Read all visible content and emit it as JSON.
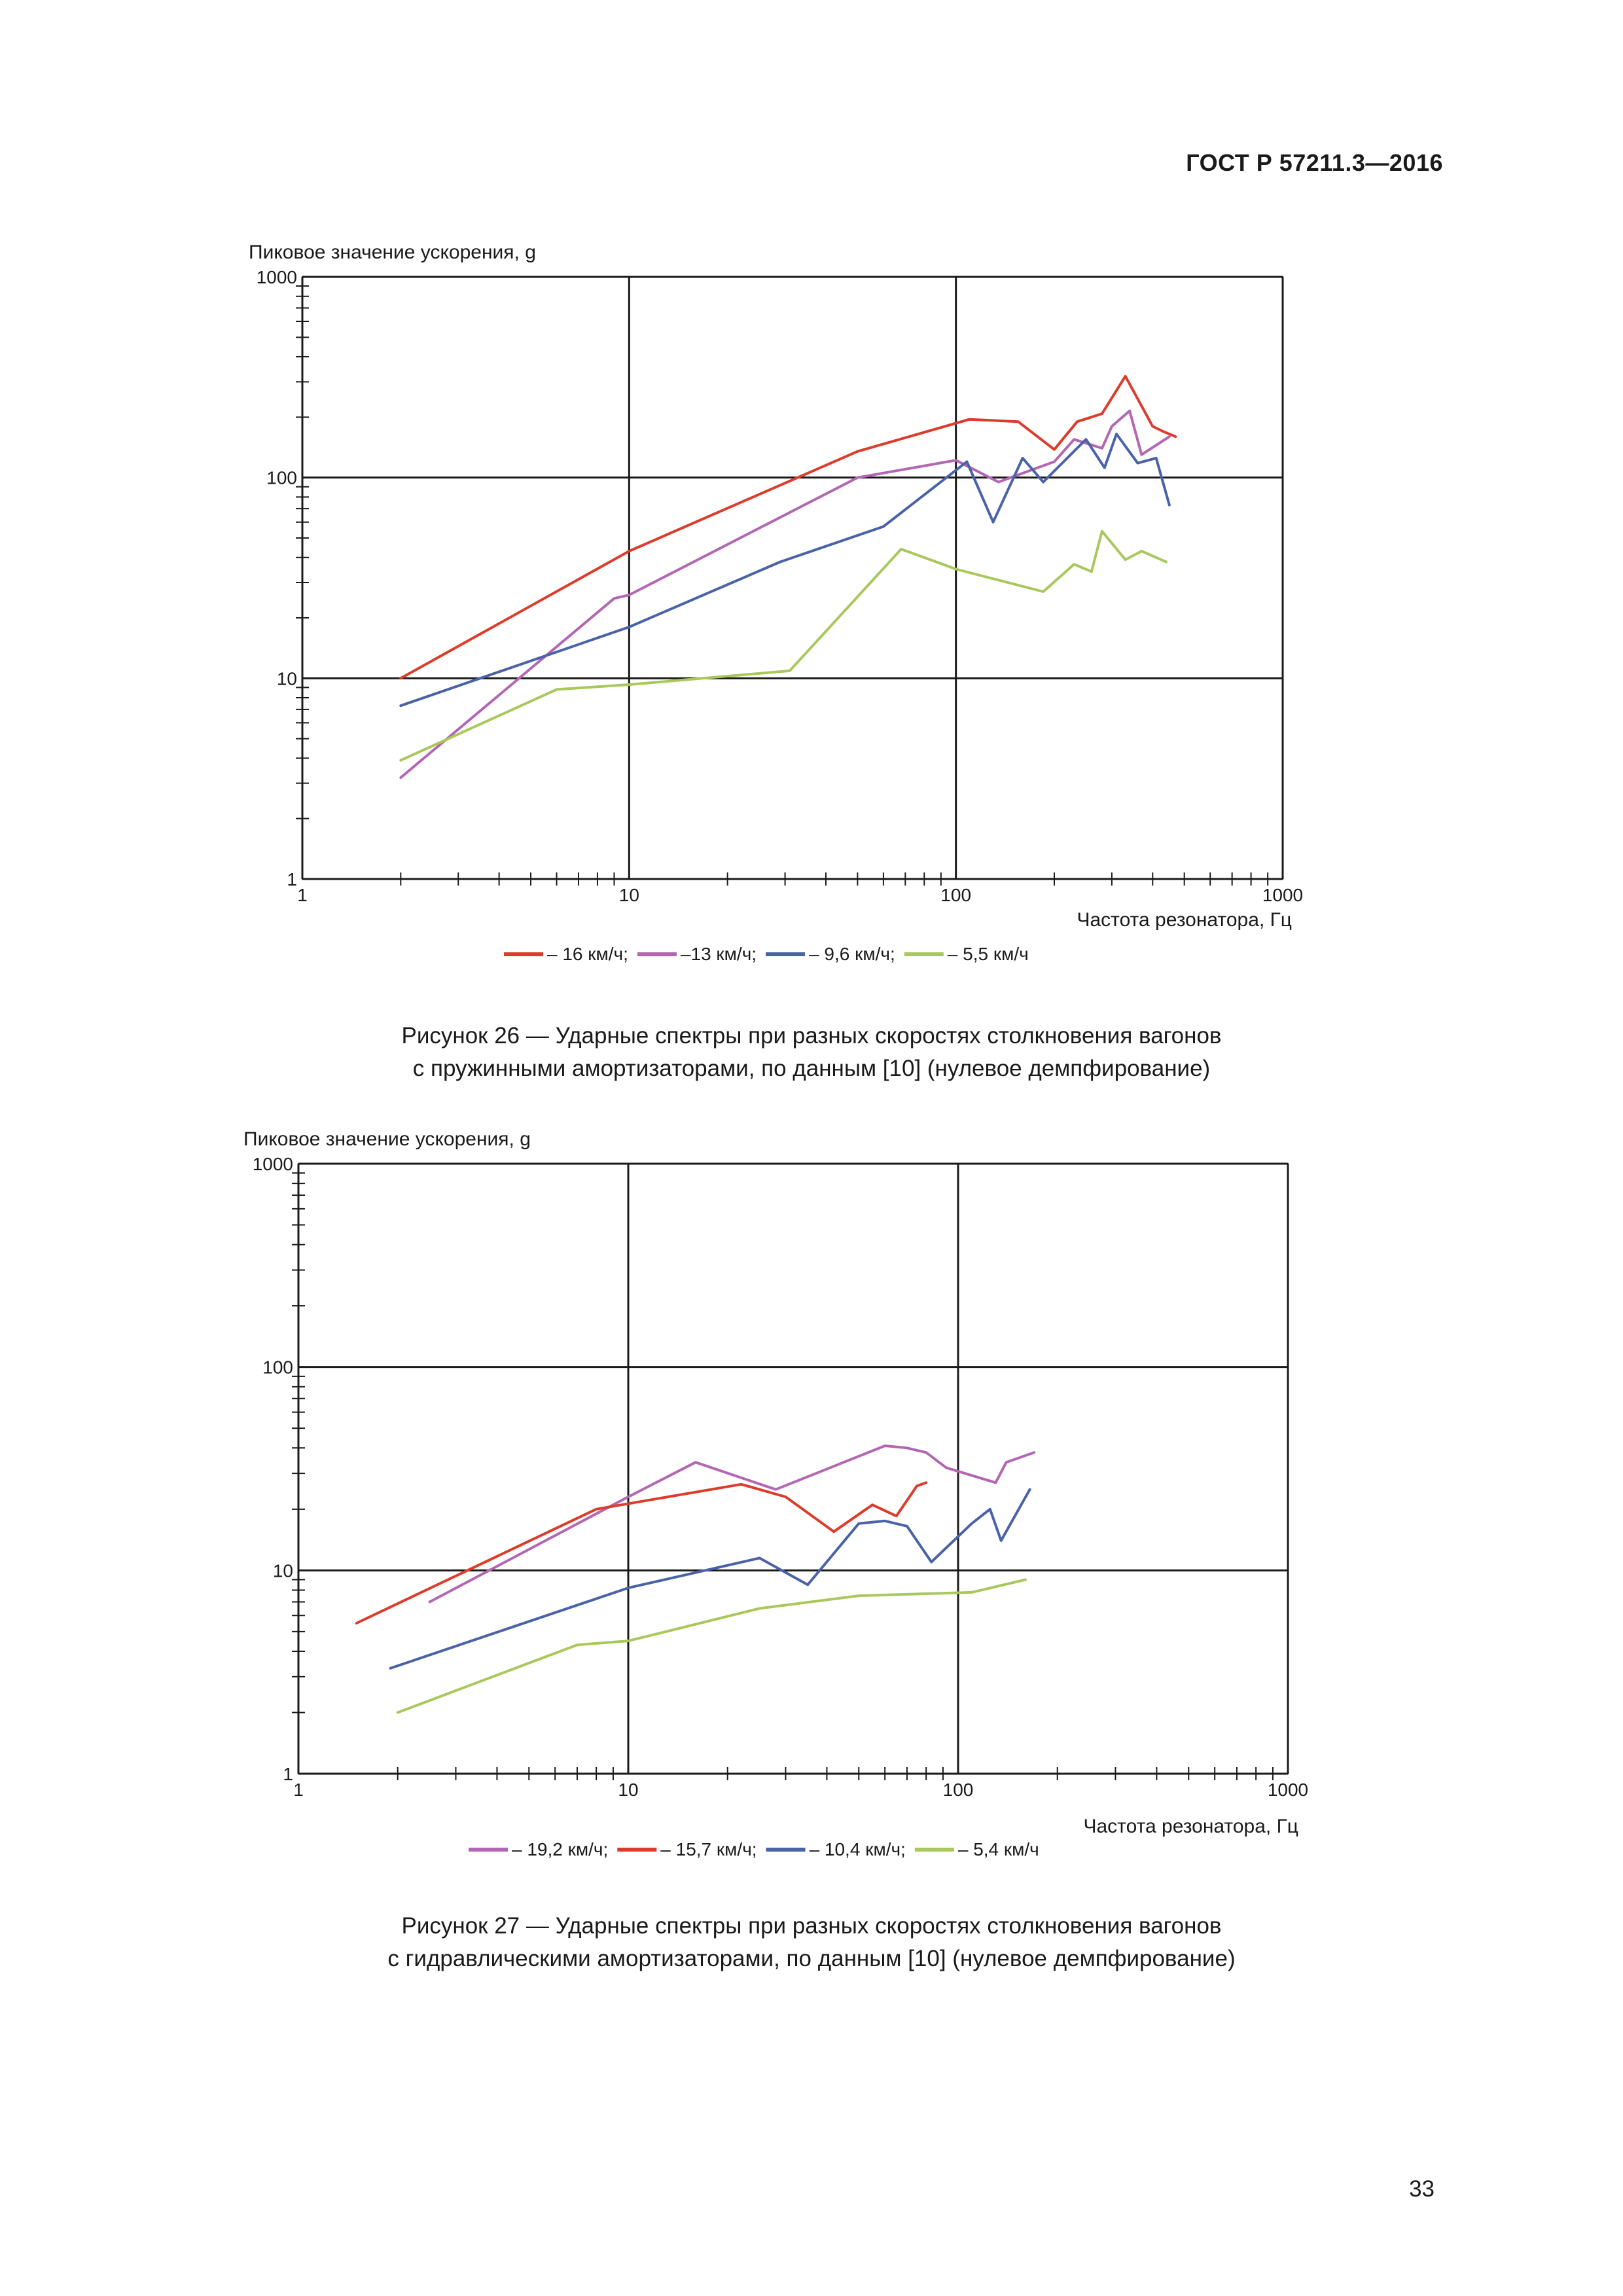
{
  "header": {
    "doc_code": "ГОСТ Р 57211.3—2016"
  },
  "page_number": "33",
  "colors": {
    "red": "#dd3b2b",
    "purple": "#b366b3",
    "blue": "#4a63a8",
    "green": "#a9c85b",
    "grid": "#1a1a1a"
  },
  "charts": [
    {
      "caption": [
        "Рисунок 26 — Ударные спектры при разных скоростях столкновения вагонов",
        "с пружинными амортизаторами, по данным [10] (нулевое демпфирование)"
      ]
    },
    {
      "caption": [
        "Рисунок 27 — Ударные спектры при разных скоростях столкновения вагонов",
        "с гидравлическими амортизаторами, по данным [10] (нулевое демпфирование)"
      ]
    }
  ],
  "chart_data": [
    {
      "type": "line",
      "title": "",
      "ylabel": "Пиковое значение ускорения, g",
      "xlabel": "Частота резонатора, Гц",
      "xscale": "log",
      "yscale": "log",
      "xlim": [
        1,
        1000
      ],
      "ylim": [
        1,
        1000
      ],
      "xticks": [
        "1",
        "10",
        "100",
        "1000"
      ],
      "yticks": [
        "1",
        "10",
        "100",
        "1000"
      ],
      "legend_position": "bottom",
      "series": [
        {
          "name": "– 16 км/ч;",
          "color": "#dd3b2b",
          "x": [
            2,
            10,
            50,
            110,
            155,
            200,
            235,
            280,
            330,
            400,
            430,
            470
          ],
          "y": [
            10,
            43,
            135,
            195,
            190,
            138,
            190,
            208,
            320,
            180,
            170,
            160
          ]
        },
        {
          "name": "–13 км/ч;",
          "color": "#b366b3",
          "x": [
            2,
            9,
            10,
            50,
            100,
            135,
            200,
            230,
            280,
            300,
            340,
            370,
            450
          ],
          "y": [
            3.2,
            25,
            26,
            100,
            122,
            95,
            120,
            155,
            140,
            180,
            215,
            130,
            160
          ]
        },
        {
          "name": "– 9,6 км/ч;",
          "color": "#4a63a8",
          "x": [
            2,
            10,
            29,
            60,
            108,
            130,
            160,
            185,
            250,
            285,
            310,
            360,
            410,
            450
          ],
          "y": [
            7.3,
            18,
            38,
            57,
            120,
            60,
            125,
            95,
            155,
            112,
            165,
            118,
            125,
            73
          ]
        },
        {
          "name": "– 5,5 км/ч",
          "color": "#a9c85b",
          "x": [
            2,
            6,
            10,
            31,
            68,
            100,
            185,
            230,
            260,
            280,
            330,
            370,
            440
          ],
          "y": [
            3.9,
            8.8,
            9.3,
            10.9,
            44,
            35,
            27,
            37,
            34,
            54,
            39,
            43,
            38
          ]
        }
      ]
    },
    {
      "type": "line",
      "title": "",
      "ylabel": "Пиковое значение ускорения, g",
      "xlabel": "Частота резонатора, Гц",
      "xscale": "log",
      "yscale": "log",
      "xlim": [
        1,
        1000
      ],
      "ylim": [
        1,
        1000
      ],
      "xticks": [
        "1",
        "10",
        "100",
        "1000"
      ],
      "yticks": [
        "1",
        "10",
        "100",
        "1000"
      ],
      "legend_position": "bottom",
      "series": [
        {
          "name": "– 19,2 км/ч;",
          "color": "#b366b3",
          "x": [
            2.5,
            10,
            16,
            28,
            60,
            70,
            80,
            92,
            130,
            140,
            170
          ],
          "y": [
            7,
            23,
            34,
            25,
            41,
            40,
            38,
            32,
            27,
            34,
            38
          ]
        },
        {
          "name": "– 15,7 км/ч;",
          "color": "#dd3b2b",
          "x": [
            1.5,
            8,
            22,
            30,
            42,
            55,
            65,
            75,
            80
          ],
          "y": [
            5.5,
            20,
            26.5,
            23,
            15.5,
            21,
            18.5,
            26,
            27
          ]
        },
        {
          "name": "– 10,4 км/ч;",
          "color": "#4a63a8",
          "x": [
            1.9,
            10,
            25,
            35,
            50,
            60,
            70,
            83,
            110,
            125,
            135,
            165
          ],
          "y": [
            3.3,
            8.2,
            11.5,
            8.5,
            17,
            17.5,
            16.5,
            11,
            17,
            20,
            14,
            25
          ]
        },
        {
          "name": "– 5,4 км/ч",
          "color": "#a9c85b",
          "x": [
            2,
            7,
            10,
            25,
            50,
            110,
            160
          ],
          "y": [
            2,
            4.3,
            4.5,
            6.5,
            7.5,
            7.8,
            9
          ]
        }
      ]
    }
  ]
}
